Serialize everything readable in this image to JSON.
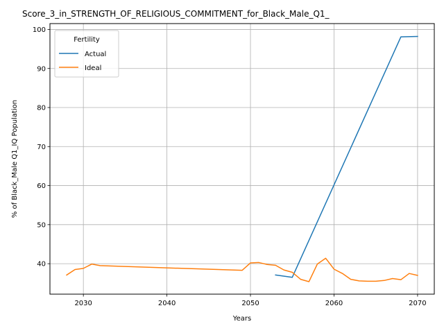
{
  "chart_data": {
    "type": "line",
    "title": "Score_3_in_STRENGTH_OF_RELIGIOUS_COMMITMENT_for_Black_Male_Q1_",
    "xlabel": "Years",
    "ylabel": "% of Black_Male Q1_IQ Population",
    "xlim": [
      2026,
      2072
    ],
    "ylim": [
      32.2,
      101.5
    ],
    "xticks": [
      2030,
      2040,
      2050,
      2060,
      2070
    ],
    "yticks": [
      40,
      50,
      60,
      70,
      80,
      90,
      100
    ],
    "grid": true,
    "legend": {
      "title": "Fertility",
      "placement": "upper-left"
    },
    "series": [
      {
        "name": "Actual",
        "color": "#1f77b4",
        "x": [
          2053,
          2055,
          2068,
          2070
        ],
        "y": [
          37.1,
          36.5,
          98.1,
          98.2
        ]
      },
      {
        "name": "Ideal",
        "color": "#ff7f0e",
        "x": [
          2028,
          2029,
          2030,
          2031,
          2032,
          2049,
          2050,
          2051,
          2052,
          2053,
          2054,
          2055,
          2056,
          2057,
          2058,
          2059,
          2060,
          2061,
          2062,
          2063,
          2064,
          2065,
          2066,
          2067,
          2068,
          2069,
          2070
        ],
        "y": [
          37.1,
          38.5,
          38.8,
          39.9,
          39.5,
          38.3,
          40.2,
          40.3,
          39.8,
          39.6,
          38.4,
          37.8,
          36.0,
          35.4,
          39.9,
          41.4,
          38.6,
          37.5,
          36.0,
          35.6,
          35.5,
          35.5,
          35.7,
          36.2,
          35.9,
          37.5,
          37.0
        ]
      }
    ]
  }
}
